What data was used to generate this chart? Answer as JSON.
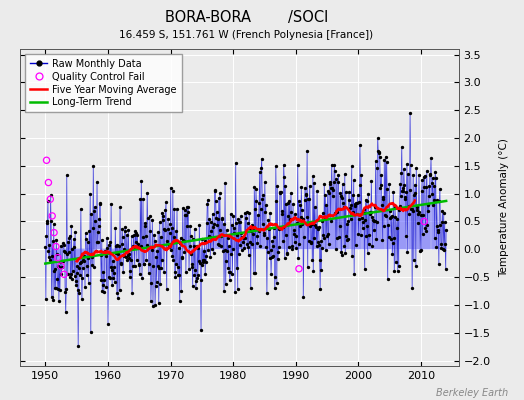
{
  "title": "BORA-BORA        /SOCI",
  "subtitle": "16.459 S, 151.761 W (French Polynesia [France])",
  "ylabel": "Temperature Anomaly (°C)",
  "watermark": "Berkeley Earth",
  "xlim": [
    1946,
    2016
  ],
  "ylim": [
    -2.1,
    3.6
  ],
  "yticks": [
    -2,
    -1.5,
    -1,
    -0.5,
    0,
    0.5,
    1,
    1.5,
    2,
    2.5,
    3,
    3.5
  ],
  "xticks": [
    1950,
    1960,
    1970,
    1980,
    1990,
    2000,
    2010
  ],
  "raw_stem_color": "#6666ff",
  "raw_dot_color": "#000000",
  "raw_line_color": "#0000cc",
  "ma_color": "#ff0000",
  "trend_color": "#00bb00",
  "qc_color": "#ff00ff",
  "bg_color": "#ebebeb",
  "seed": 17
}
